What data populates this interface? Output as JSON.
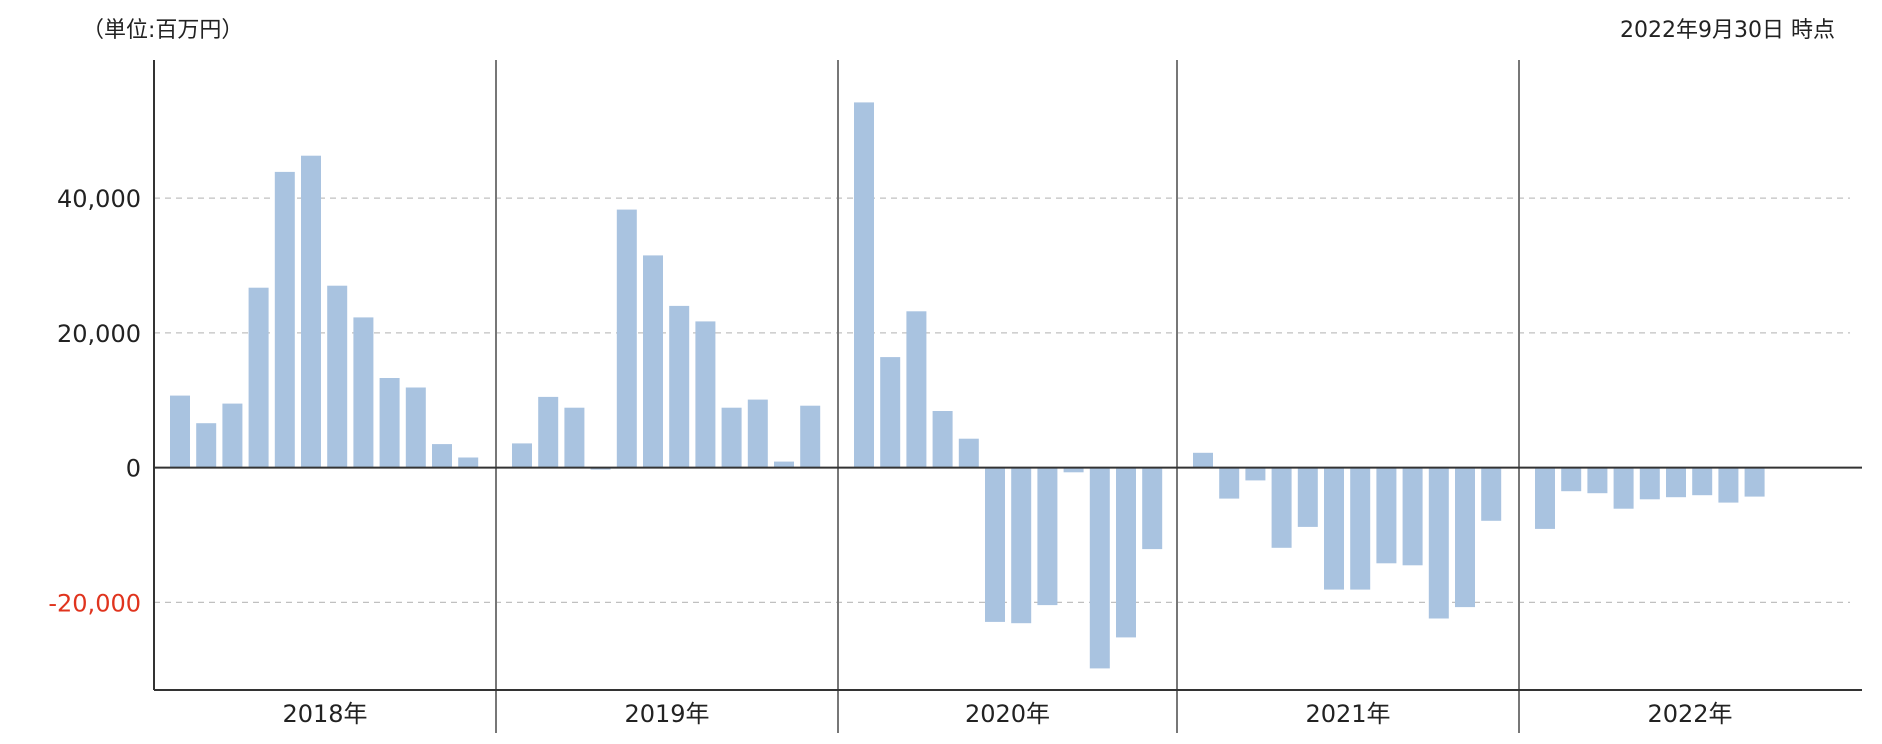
{
  "header": {
    "unit_label": "（単位:百万円）",
    "as_of_label": "2022年9月30日 時点"
  },
  "colors": {
    "bar": "#a9c3e0",
    "axis": "#333333",
    "separator": "#777777",
    "grid": "#c0c0c0",
    "negative_tick": "#e0341e",
    "tick": "#222222"
  },
  "chart_data": {
    "type": "bar",
    "title": "",
    "xlabel": "",
    "ylabel": "",
    "ylim": [
      -33000,
      60500
    ],
    "yticks": [
      {
        "value": 40000,
        "label": "40,000"
      },
      {
        "value": 20000,
        "label": "20,000"
      },
      {
        "value": 0,
        "label": "0"
      },
      {
        "value": -20000,
        "label": "-20,000"
      }
    ],
    "grid": true,
    "groups": [
      {
        "label": "2018年",
        "values": [
          10700,
          6600,
          9500,
          26700,
          43900,
          46300,
          27000,
          22300,
          13300,
          11900,
          3500,
          1500
        ]
      },
      {
        "label": "2019年",
        "values": [
          3600,
          10500,
          8900,
          -300,
          38300,
          31500,
          24000,
          21700,
          8900,
          10100,
          900,
          9200
        ]
      },
      {
        "label": "2020年",
        "values": [
          54200,
          16400,
          23200,
          8400,
          4300,
          -22900,
          -23100,
          -20400,
          -700,
          -29800,
          -25200,
          -12100
        ]
      },
      {
        "label": "2021年",
        "values": [
          2200,
          -4600,
          -1900,
          -11900,
          -8800,
          -18100,
          -18100,
          -14200,
          -14500,
          -22400,
          -20700,
          -7900
        ]
      },
      {
        "label": "2022年",
        "values": [
          -9100,
          -3500,
          -3800,
          -6100,
          -4700,
          -4400,
          -4100,
          -5200,
          -4300
        ]
      }
    ]
  }
}
